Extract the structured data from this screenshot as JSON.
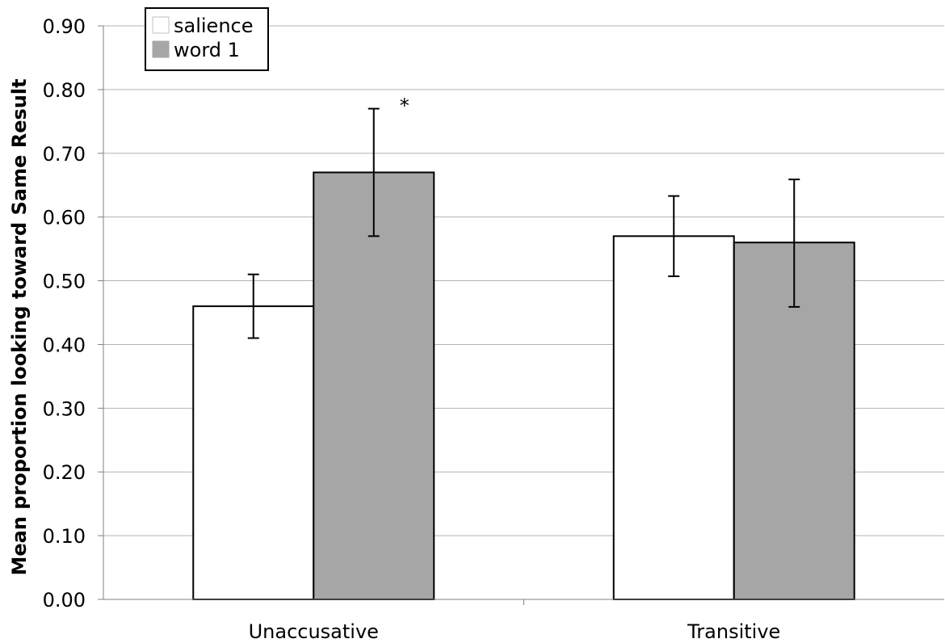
{
  "chart_data": {
    "type": "bar",
    "title": "",
    "xlabel": "",
    "ylabel": "Mean proportion looking toward Same Result",
    "categories": [
      "Unaccusative",
      "Transitive"
    ],
    "series": [
      {
        "name": "salience",
        "color": "#ffffff",
        "values": [
          0.46,
          0.57
        ],
        "error_low": [
          0.41,
          0.507
        ],
        "error_high": [
          0.51,
          0.633
        ]
      },
      {
        "name": "word 1",
        "color": "#a6a6a6",
        "values": [
          0.67,
          0.56
        ],
        "error_low": [
          0.57,
          0.459
        ],
        "error_high": [
          0.77,
          0.659
        ]
      }
    ],
    "ylim": [
      0,
      0.9
    ],
    "yticks": [
      "0.00",
      "0.10",
      "0.20",
      "0.30",
      "0.40",
      "0.50",
      "0.60",
      "0.70",
      "0.80",
      "0.90"
    ],
    "grid": true,
    "legend": "top-left",
    "annotations": [
      {
        "text": "*",
        "category": "Unaccusative",
        "series": "word 1",
        "y": 0.8
      }
    ]
  }
}
